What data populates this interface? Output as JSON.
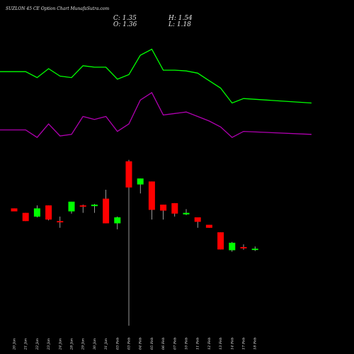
{
  "title": "SUZLON 45 CE Option Chart MunafaSutra.com",
  "ohlc": {
    "c": "C: 1.35",
    "h": "H: 1.54",
    "o": "O: 1.36",
    "l": "L: 1.18"
  },
  "colors": {
    "background": "#000000",
    "up": "#00ff00",
    "down": "#ff0000",
    "wick": "#ffffff",
    "line_green": "#00ff00",
    "line_magenta": "#b000b0",
    "text": "#e6e6e6"
  },
  "chart_data": {
    "type": "candlestick",
    "x": [
      "20 Jan",
      "21 Jan",
      "22 Jan",
      "23 Jan",
      "24 Jan",
      "28 Jan",
      "29 Jan",
      "30 Jan",
      "31 Jan",
      "03 Feb",
      "03 Feb",
      "04 Feb",
      "05 Feb",
      "06 Feb",
      "07 Feb",
      "10 Feb",
      "11 Feb",
      "12 Feb",
      "13 Feb",
      "14 Feb",
      "17 Feb",
      "18 Feb"
    ],
    "candles": [
      {
        "open": 3.95,
        "close": 3.75,
        "high": 3.95,
        "low": 3.75
      },
      {
        "open": 3.65,
        "close": 3.1,
        "high": 3.65,
        "low": 3.1
      },
      {
        "open": 3.4,
        "close": 3.95,
        "high": 4.15,
        "low": 3.35
      },
      {
        "open": 4.15,
        "close": 3.2,
        "high": 4.15,
        "low": 3.15
      },
      {
        "open": 3.1,
        "close": 3.05,
        "high": 3.4,
        "low": 2.65
      },
      {
        "open": 3.75,
        "close": 4.4,
        "high": 4.4,
        "low": 3.6
      },
      {
        "open": 4.15,
        "close": 4.1,
        "high": 4.2,
        "low": 3.65
      },
      {
        "open": 4.1,
        "close": 4.2,
        "high": 4.25,
        "low": 3.65
      },
      {
        "open": 4.6,
        "close": 2.95,
        "high": 5.2,
        "low": 2.95
      },
      {
        "open": 2.95,
        "close": 3.35,
        "high": 3.4,
        "low": 2.55
      },
      {
        "open": 7.1,
        "close": 5.35,
        "high": 7.2,
        "low": -3.9
      },
      {
        "open": 5.55,
        "close": 5.95,
        "high": 5.95,
        "low": 4.95
      },
      {
        "open": 5.75,
        "close": 3.85,
        "high": 5.75,
        "low": 3.2
      },
      {
        "open": 4.2,
        "close": 3.8,
        "high": 4.2,
        "low": 3.2
      },
      {
        "open": 4.3,
        "close": 3.6,
        "high": 4.3,
        "low": 3.4
      },
      {
        "open": 3.55,
        "close": 3.65,
        "high": 3.9,
        "low": 3.5
      },
      {
        "open": 3.35,
        "close": 3.05,
        "high": 3.35,
        "low": 2.65
      },
      {
        "open": 2.85,
        "close": 2.65,
        "high": 2.85,
        "low": 2.65
      },
      {
        "open": 2.35,
        "close": 1.2,
        "high": 2.35,
        "low": 1.2
      },
      {
        "open": 1.15,
        "close": 1.65,
        "high": 1.7,
        "low": 1.05
      },
      {
        "open": 1.36,
        "close": 1.35,
        "high": 1.54,
        "low": 1.18
      },
      {
        "open": 1.2,
        "close": 1.25,
        "high": 1.4,
        "low": 1.1
      }
    ],
    "line_series": [
      {
        "color": "#00ff00",
        "values": [
          13.1,
          13.1,
          12.7,
          13.3,
          12.8,
          12.7,
          13.5,
          13.4,
          13.4,
          12.6,
          12.9,
          14.2,
          14.6,
          13.2,
          13.2,
          13.15,
          13.0,
          12.5,
          12.0,
          11.0,
          11.3,
          11.0
        ]
      },
      {
        "color": "#b000b0",
        "values": [
          9.2,
          9.2,
          8.7,
          9.6,
          8.8,
          8.9,
          10.1,
          9.9,
          10.1,
          9.1,
          9.6,
          11.2,
          11.7,
          10.2,
          10.3,
          10.4,
          10.1,
          9.8,
          9.4,
          8.7,
          9.1,
          8.9
        ]
      }
    ],
    "ylim": [
      -3.9,
      16.0
    ]
  }
}
